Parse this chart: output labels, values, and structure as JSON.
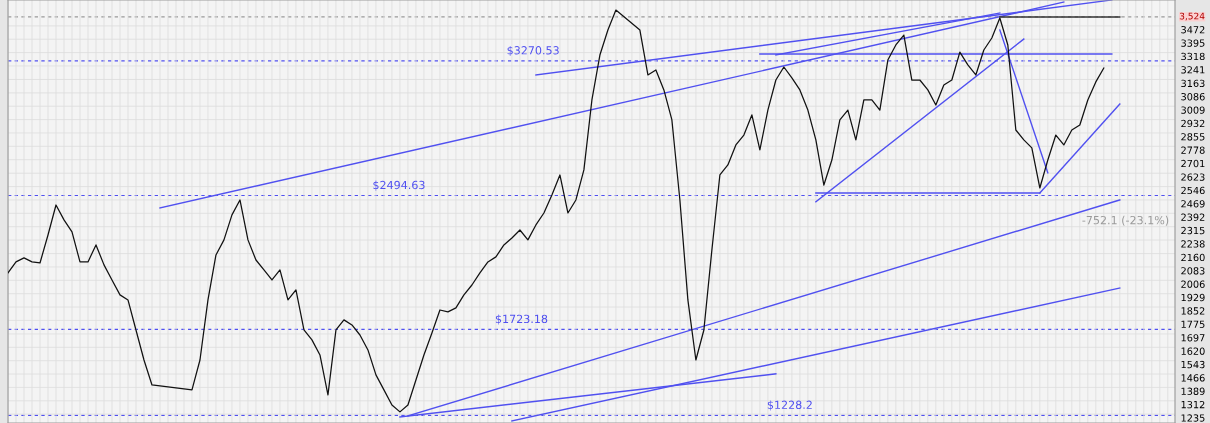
{
  "chart_data": {
    "type": "line",
    "categories": [
      null,
      null,
      null,
      null,
      null,
      null,
      null,
      null,
      null,
      null,
      null,
      null,
      null,
      null,
      null,
      null,
      null,
      null,
      null,
      null,
      null,
      null,
      null,
      null,
      null,
      null,
      null,
      null,
      null,
      null,
      null,
      null,
      null,
      null,
      null,
      null,
      null,
      null,
      null,
      null,
      null,
      null,
      null,
      null,
      null,
      null,
      null,
      null,
      null,
      null,
      null,
      null,
      null,
      null,
      null,
      null,
      null,
      null,
      null,
      null,
      null,
      null,
      null,
      null,
      null,
      null,
      null,
      null,
      null,
      null,
      null,
      null,
      null,
      null,
      null,
      null,
      null,
      null,
      null,
      null,
      null,
      null,
      null,
      null,
      null,
      null,
      null,
      null,
      null,
      null,
      null,
      null,
      null,
      null,
      null,
      null,
      null,
      null,
      null,
      null,
      null,
      null,
      null,
      null,
      null,
      null,
      null,
      null,
      null,
      null,
      null,
      null,
      null,
      null,
      null,
      null,
      null,
      null,
      null,
      null,
      null,
      null,
      null,
      null,
      null,
      null,
      null,
      null,
      null,
      null,
      null,
      null,
      null,
      null,
      null,
      null,
      null,
      null,
      null,
      null,
      null,
      null,
      null,
      null,
      null,
      null
    ],
    "series": [
      {
        "color": "#111111",
        "values": [
          2049,
          2112,
          2135,
          2112,
          2106,
          2267,
          2440,
          2354,
          2285,
          2112,
          2112,
          2210,
          2095,
          2008,
          1922,
          1893,
          1720,
          1547,
          1403,
          null,
          null,
          null,
          null,
          1375,
          1547,
          1893,
          2152,
          2239,
          2383,
          2469,
          2239,
          2123,
          2066,
          2008,
          2066,
          1893,
          1951,
          1720,
          1663,
          1576,
          1346,
          1720,
          1778,
          1749,
          1691,
          1605,
          1461,
          1375,
          1288,
          1248,
          1288,
          1432,
          1576,
          1703,
          1835,
          1824,
          1847,
          1922,
          1979,
          2049,
          2112,
          2141,
          2210,
          2250,
          2296,
          2239,
          2325,
          2394,
          2498,
          2613,
          2394,
          2469,
          2642,
          3045,
          3304,
          3448,
          3563,
          null,
          null,
          3448,
          3189,
          3218,
          3103,
          2930,
          2469,
          1893,
          1547,
          1720,
          2181,
          2613,
          2671,
          2786,
          2843,
          2959,
          2757,
          2987,
          3160,
          3235,
          3172,
          3103,
          2987,
          2815,
          2555,
          2699,
          2930,
          2987,
          2815,
          3045,
          3045,
          2987,
          3275,
          3362,
          3419,
          3160,
          3160,
          3103,
          3016,
          3131,
          3160,
          3321,
          3247,
          3189,
          3333,
          3402,
          3517,
          3362,
          2872,
          2815,
          2769,
          2538,
          2699,
          2843,
          2786,
          2872,
          2901,
          3045,
          3149,
          3229,
          null,
          null,
          null,
          null,
          null,
          null,
          null,
          null
        ]
      },
      {
        "color": "#5050f0",
        "values": [
          null,
          null,
          null,
          null,
          null,
          null,
          null,
          null,
          null,
          null,
          null,
          null,
          null,
          null,
          null,
          null,
          null,
          null,
          null,
          2423,
          null,
          null,
          null,
          null,
          null,
          null,
          null,
          null,
          null,
          null,
          null,
          null,
          null,
          null,
          null,
          null,
          null,
          null,
          null,
          null,
          null,
          null,
          null,
          null,
          null,
          null,
          null,
          null,
          null,
          null,
          null,
          null,
          null,
          null,
          null,
          null,
          null,
          null,
          null,
          null,
          null,
          null,
          null,
          null,
          null,
          null,
          null,
          null,
          null,
          null,
          null,
          null,
          null,
          null,
          null,
          null,
          null,
          null,
          null,
          null,
          null,
          null,
          null,
          null,
          null,
          null,
          null,
          null,
          null,
          null,
          null,
          null,
          null,
          null,
          null,
          null,
          null,
          null,
          null,
          null,
          null,
          null,
          null,
          null,
          null,
          null,
          null,
          null,
          null,
          null,
          null,
          null,
          null,
          null,
          null,
          null,
          null,
          null,
          null,
          null,
          null,
          null,
          null,
          null,
          null,
          null,
          null,
          null,
          null,
          null,
          null,
          null,
          3609,
          null,
          null,
          null,
          null,
          null,
          null,
          null,
          null,
          null,
          null,
          null,
          null,
          null
        ]
      },
      {
        "color": "#5050f0",
        "values": [
          null,
          null,
          null,
          null,
          null,
          null,
          null,
          null,
          null,
          null,
          null,
          null,
          null,
          null,
          null,
          null,
          null,
          null,
          null,
          null,
          null,
          null,
          null,
          null,
          null,
          null,
          null,
          null,
          null,
          null,
          null,
          null,
          null,
          null,
          null,
          null,
          null,
          null,
          null,
          null,
          null,
          null,
          null,
          null,
          null,
          null,
          null,
          null,
          null,
          null,
          null,
          null,
          null,
          null,
          null,
          null,
          null,
          null,
          null,
          null,
          null,
          null,
          null,
          null,
          null,
          null,
          3189,
          null,
          null,
          null,
          null,
          null,
          null,
          null,
          null,
          null,
          null,
          null,
          null,
          null,
          null,
          null,
          null,
          null,
          null,
          null,
          null,
          null,
          null,
          null,
          null,
          null,
          null,
          null,
          null,
          null,
          null,
          null,
          null,
          null,
          null,
          null,
          null,
          null,
          null,
          null,
          null,
          null,
          null,
          null,
          null,
          null,
          null,
          null,
          null,
          null,
          null,
          null,
          null,
          null,
          null,
          null,
          null,
          null,
          null,
          null,
          null,
          null,
          null,
          null,
          null,
          null,
          null,
          null,
          null,
          null,
          null,
          null,
          3621,
          null,
          null,
          null,
          null,
          null,
          null,
          null
        ]
      },
      {
        "color": "#5050f0",
        "values": [
          null,
          null,
          null,
          null,
          null,
          null,
          null,
          null,
          null,
          null,
          null,
          null,
          null,
          null,
          null,
          null,
          null,
          null,
          null,
          null,
          null,
          null,
          null,
          null,
          null,
          null,
          null,
          null,
          null,
          null,
          null,
          null,
          null,
          null,
          null,
          null,
          null,
          null,
          null,
          null,
          null,
          null,
          null,
          null,
          null,
          null,
          null,
          null,
          null,
          null,
          null,
          null,
          null,
          null,
          null,
          null,
          null,
          null,
          null,
          null,
          null,
          null,
          null,
          null,
          null,
          null,
          null,
          null,
          null,
          null,
          null,
          null,
          null,
          null,
          null,
          null,
          null,
          null,
          null,
          null,
          null,
          null,
          null,
          null,
          null,
          null,
          null,
          null,
          null,
          null,
          null,
          null,
          null,
          null,
          null,
          null,
          3304,
          null,
          null,
          null,
          null,
          null,
          null,
          null,
          null,
          null,
          null,
          null,
          null,
          null,
          null,
          null,
          null,
          null,
          null,
          null,
          null,
          null,
          null,
          null,
          null,
          null,
          null,
          null,
          3546,
          null,
          null,
          null,
          null,
          null,
          null,
          null,
          null,
          null,
          null,
          null,
          null,
          null,
          null,
          null,
          null,
          null,
          null,
          null,
          null,
          null
        ]
      },
      {
        "color": "#5050f0",
        "values": [
          null,
          null,
          null,
          null,
          null,
          null,
          null,
          null,
          null,
          null,
          null,
          null,
          null,
          null,
          null,
          null,
          null,
          null,
          null,
          null,
          null,
          null,
          null,
          null,
          null,
          null,
          null,
          null,
          null,
          null,
          null,
          null,
          null,
          null,
          null,
          null,
          null,
          null,
          null,
          null,
          null,
          null,
          null,
          null,
          null,
          null,
          null,
          null,
          null,
          null,
          null,
          null,
          null,
          null,
          null,
          null,
          null,
          null,
          null,
          null,
          null,
          null,
          null,
          null,
          null,
          null,
          null,
          null,
          null,
          null,
          null,
          null,
          null,
          null,
          null,
          null,
          null,
          null,
          null,
          null,
          null,
          null,
          null,
          null,
          null,
          null,
          null,
          null,
          null,
          null,
          null,
          null,
          null,
          null,
          3310,
          null,
          null,
          null,
          null,
          null,
          null,
          null,
          null,
          null,
          null,
          null,
          null,
          null,
          null,
          null,
          null,
          null,
          null,
          null,
          null,
          null,
          null,
          null,
          null,
          null,
          null,
          null,
          null,
          null,
          null,
          null,
          null,
          null,
          null,
          null,
          null,
          null,
          null,
          null,
          null,
          null,
          null,
          null,
          3310,
          null,
          null,
          null,
          null,
          null,
          null,
          null
        ]
      },
      {
        "color": "#5050f0",
        "values": [
          null,
          null,
          null,
          null,
          null,
          null,
          null,
          null,
          null,
          null,
          null,
          null,
          null,
          null,
          null,
          null,
          null,
          null,
          null,
          null,
          null,
          null,
          null,
          null,
          null,
          null,
          null,
          null,
          null,
          null,
          null,
          null,
          null,
          null,
          null,
          null,
          null,
          null,
          null,
          null,
          null,
          null,
          null,
          null,
          null,
          null,
          null,
          null,
          null,
          null,
          null,
          null,
          null,
          null,
          null,
          null,
          null,
          null,
          null,
          null,
          null,
          null,
          null,
          null,
          null,
          null,
          null,
          null,
          null,
          null,
          null,
          null,
          null,
          null,
          null,
          null,
          null,
          null,
          null,
          null,
          null,
          null,
          null,
          null,
          null,
          null,
          null,
          null,
          null,
          null,
          null,
          null,
          null,
          null,
          null,
          null,
          null,
          null,
          null,
          null,
          null,
          2458,
          null,
          null,
          null,
          null,
          null,
          null,
          null,
          null,
          null,
          null,
          null,
          null,
          null,
          null,
          null,
          null,
          null,
          null,
          null,
          null,
          null,
          null,
          null,
          null,
          null,
          3396,
          null,
          null,
          null,
          null,
          null,
          null,
          null,
          null,
          null,
          null,
          null,
          null,
          null,
          null,
          null,
          null,
          null,
          null
        ]
      },
      {
        "color": "#5050f0",
        "values": [
          null,
          null,
          null,
          null,
          null,
          null,
          null,
          null,
          null,
          null,
          null,
          null,
          null,
          null,
          null,
          null,
          null,
          null,
          null,
          null,
          null,
          null,
          null,
          null,
          null,
          null,
          null,
          null,
          null,
          null,
          null,
          null,
          null,
          null,
          null,
          null,
          null,
          null,
          null,
          null,
          null,
          null,
          null,
          null,
          null,
          null,
          null,
          null,
          null,
          null,
          null,
          null,
          null,
          null,
          null,
          null,
          null,
          null,
          null,
          null,
          null,
          null,
          null,
          null,
          null,
          null,
          null,
          null,
          null,
          null,
          null,
          null,
          null,
          null,
          null,
          null,
          null,
          null,
          null,
          null,
          null,
          null,
          null,
          null,
          null,
          null,
          null,
          null,
          null,
          null,
          null,
          null,
          null,
          null,
          null,
          null,
          null,
          null,
          null,
          null,
          null,
          2509,
          null,
          null,
          null,
          null,
          null,
          null,
          null,
          null,
          null,
          null,
          null,
          null,
          null,
          null,
          null,
          null,
          null,
          null,
          null,
          null,
          null,
          null,
          null,
          null,
          null,
          null,
          null,
          2509,
          null,
          null,
          null,
          null,
          null,
          null,
          null,
          null,
          null,
          null,
          null,
          null,
          null,
          null,
          null,
          null
        ]
      },
      {
        "color": "#5050f0",
        "values": [
          null,
          null,
          null,
          null,
          null,
          null,
          null,
          null,
          null,
          null,
          null,
          null,
          null,
          null,
          null,
          null,
          null,
          null,
          null,
          null,
          null,
          null,
          null,
          null,
          null,
          null,
          null,
          null,
          null,
          null,
          null,
          null,
          null,
          null,
          null,
          null,
          null,
          null,
          null,
          null,
          null,
          null,
          null,
          null,
          null,
          null,
          null,
          null,
          null,
          null,
          null,
          null,
          null,
          null,
          null,
          null,
          null,
          null,
          null,
          null,
          null,
          null,
          null,
          null,
          null,
          null,
          null,
          null,
          null,
          null,
          null,
          null,
          null,
          null,
          null,
          null,
          null,
          null,
          null,
          null,
          null,
          null,
          null,
          null,
          null,
          null,
          null,
          null,
          null,
          null,
          null,
          null,
          null,
          null,
          null,
          null,
          null,
          null,
          null,
          null,
          null,
          null,
          null,
          null,
          null,
          null,
          null,
          null,
          null,
          null,
          null,
          null,
          null,
          null,
          null,
          null,
          null,
          null,
          null,
          null,
          null,
          null,
          null,
          null,
          3448,
          null,
          null,
          null,
          null,
          null,
          2625,
          null,
          null,
          null,
          null,
          null,
          null,
          null,
          null,
          null,
          null,
          null,
          null,
          null,
          null,
          null
        ]
      },
      {
        "color": "#5050f0",
        "values": [
          null,
          null,
          null,
          null,
          null,
          null,
          null,
          null,
          null,
          null,
          null,
          null,
          null,
          null,
          null,
          null,
          null,
          null,
          null,
          null,
          null,
          null,
          null,
          null,
          null,
          null,
          null,
          null,
          null,
          null,
          null,
          null,
          null,
          null,
          null,
          null,
          null,
          null,
          null,
          null,
          null,
          null,
          null,
          null,
          null,
          null,
          null,
          null,
          null,
          null,
          null,
          null,
          null,
          null,
          null,
          null,
          null,
          null,
          null,
          null,
          null,
          null,
          null,
          null,
          null,
          null,
          null,
          null,
          null,
          null,
          null,
          null,
          null,
          null,
          null,
          null,
          null,
          null,
          null,
          null,
          null,
          null,
          null,
          null,
          null,
          null,
          null,
          null,
          null,
          null,
          null,
          null,
          null,
          null,
          null,
          null,
          null,
          null,
          null,
          null,
          null,
          null,
          null,
          null,
          null,
          null,
          null,
          null,
          null,
          null,
          null,
          null,
          null,
          null,
          null,
          null,
          null,
          null,
          null,
          null,
          null,
          null,
          null,
          null,
          null,
          null,
          null,
          null,
          null,
          2509,
          null,
          null,
          null,
          null,
          null,
          null,
          null,
          null,
          null,
          3022,
          null,
          null,
          null,
          null,
          null,
          null
        ]
      },
      {
        "color": "#5050f0",
        "values": [
          null,
          null,
          null,
          null,
          null,
          null,
          null,
          null,
          null,
          null,
          null,
          null,
          null,
          null,
          null,
          null,
          null,
          null,
          null,
          null,
          null,
          null,
          null,
          null,
          null,
          null,
          null,
          null,
          null,
          null,
          null,
          null,
          null,
          null,
          null,
          null,
          null,
          null,
          null,
          null,
          null,
          null,
          null,
          null,
          null,
          null,
          null,
          null,
          null,
          null,
          1225,
          null,
          null,
          null,
          null,
          null,
          null,
          null,
          null,
          null,
          null,
          null,
          null,
          null,
          null,
          null,
          null,
          null,
          null,
          null,
          null,
          null,
          null,
          null,
          null,
          null,
          null,
          null,
          null,
          null,
          null,
          null,
          null,
          null,
          null,
          null,
          null,
          null,
          null,
          null,
          null,
          null,
          null,
          null,
          null,
          null,
          null,
          null,
          null,
          null,
          null,
          null,
          null,
          null,
          null,
          null,
          null,
          null,
          null,
          null,
          null,
          null,
          null,
          null,
          null,
          null,
          null,
          null,
          null,
          null,
          null,
          null,
          null,
          null,
          null,
          null,
          null,
          null,
          null,
          null,
          null,
          null,
          null,
          null,
          null,
          null,
          null,
          null,
          null,
          2469,
          null,
          null,
          null,
          null,
          null,
          null
        ]
      },
      {
        "color": "#5050f0",
        "values": [
          null,
          null,
          null,
          null,
          null,
          null,
          null,
          null,
          null,
          null,
          null,
          null,
          null,
          null,
          null,
          null,
          null,
          null,
          null,
          null,
          null,
          null,
          null,
          null,
          null,
          null,
          null,
          null,
          null,
          null,
          null,
          null,
          null,
          null,
          null,
          null,
          null,
          null,
          null,
          null,
          null,
          null,
          null,
          null,
          null,
          null,
          null,
          null,
          null,
          null,
          null,
          null,
          null,
          null,
          null,
          null,
          null,
          null,
          null,
          null,
          null,
          null,
          null,
          1196,
          null,
          null,
          null,
          null,
          null,
          null,
          null,
          null,
          null,
          null,
          null,
          null,
          null,
          null,
          null,
          null,
          null,
          null,
          null,
          null,
          null,
          null,
          null,
          null,
          null,
          null,
          null,
          null,
          null,
          null,
          null,
          null,
          null,
          null,
          null,
          null,
          null,
          null,
          null,
          null,
          null,
          null,
          null,
          null,
          null,
          null,
          null,
          null,
          null,
          null,
          null,
          null,
          null,
          null,
          null,
          null,
          null,
          null,
          null,
          null,
          null,
          null,
          null,
          null,
          null,
          null,
          null,
          null,
          null,
          null,
          null,
          null,
          null,
          null,
          null,
          1962,
          null,
          null,
          null,
          null,
          null,
          null
        ]
      },
      {
        "color": "#5050f0",
        "values": [
          null,
          null,
          null,
          null,
          null,
          null,
          null,
          null,
          null,
          null,
          null,
          null,
          null,
          null,
          null,
          null,
          null,
          null,
          null,
          null,
          null,
          null,
          null,
          null,
          null,
          null,
          null,
          null,
          null,
          null,
          null,
          null,
          null,
          null,
          null,
          null,
          null,
          null,
          null,
          null,
          null,
          null,
          null,
          null,
          null,
          null,
          null,
          null,
          null,
          1219,
          null,
          null,
          null,
          null,
          null,
          null,
          null,
          null,
          null,
          null,
          null,
          null,
          null,
          null,
          null,
          null,
          null,
          null,
          null,
          null,
          null,
          null,
          null,
          null,
          null,
          null,
          null,
          null,
          null,
          null,
          null,
          null,
          null,
          null,
          null,
          null,
          null,
          null,
          null,
          null,
          null,
          null,
          null,
          null,
          null,
          null,
          1467,
          null,
          null,
          null,
          null,
          null,
          null,
          null,
          null,
          null,
          null,
          null,
          null,
          null,
          null,
          null,
          null,
          null,
          null,
          null,
          null,
          null,
          null,
          null,
          null,
          null,
          null,
          null,
          null,
          null,
          null,
          null,
          null,
          null,
          null,
          null,
          null,
          null,
          null,
          null,
          null,
          null,
          null,
          null,
          null,
          null,
          null,
          null,
          null,
          null
        ]
      },
      {
        "color": "#333333",
        "values": [
          null,
          null,
          null,
          null,
          null,
          null,
          null,
          null,
          null,
          null,
          null,
          null,
          null,
          null,
          null,
          null,
          null,
          null,
          null,
          null,
          null,
          null,
          null,
          null,
          null,
          null,
          null,
          null,
          null,
          null,
          null,
          null,
          null,
          null,
          null,
          null,
          null,
          null,
          null,
          null,
          null,
          null,
          null,
          null,
          null,
          null,
          null,
          null,
          null,
          null,
          null,
          null,
          null,
          null,
          null,
          null,
          null,
          null,
          null,
          null,
          null,
          null,
          null,
          null,
          null,
          null,
          null,
          null,
          null,
          null,
          null,
          null,
          null,
          null,
          null,
          null,
          null,
          null,
          null,
          null,
          null,
          null,
          null,
          null,
          null,
          null,
          null,
          null,
          null,
          null,
          null,
          null,
          null,
          null,
          null,
          null,
          null,
          null,
          null,
          null,
          null,
          null,
          null,
          null,
          null,
          null,
          null,
          null,
          null,
          null,
          null,
          null,
          null,
          null,
          null,
          null,
          null,
          null,
          null,
          null,
          null,
          null,
          null,
          null,
          3523,
          null,
          null,
          null,
          null,
          null,
          null,
          null,
          null,
          null,
          null,
          null,
          null,
          null,
          null,
          3523,
          null,
          null,
          null,
          null,
          null,
          null
        ]
      }
    ],
    "ylim": [
      1184,
      3621
    ],
    "yticks": [
      1235,
      1312,
      1389,
      1466,
      1543,
      1620,
      1697,
      1775,
      1852,
      1929,
      2006,
      2083,
      2160,
      2238,
      2315,
      2392,
      2469,
      2546,
      2623,
      2701,
      2778,
      2855,
      2932,
      3009,
      3086,
      3163,
      3241,
      3318,
      3395,
      3472
    ],
    "ref_lines": [
      {
        "axis": "y",
        "value": 3524,
        "label": "3,524",
        "color": "#999999",
        "line_style": "dashed"
      },
      {
        "axis": "y",
        "value": 3270.53,
        "label": "$3270.53",
        "color": "#5050f0",
        "line_style": "dashed"
      },
      {
        "axis": "y",
        "value": 2494.63,
        "label": "$2494.63",
        "color": "#5050f0",
        "line_style": "dashed"
      },
      {
        "axis": "y",
        "value": 1723.18,
        "label": "$1723.18",
        "color": "#5050f0",
        "line_style": "dashed"
      },
      {
        "axis": "y",
        "value": 1228.2,
        "label": "$1228.2",
        "color": "#5050f0",
        "line_style": "dashed"
      }
    ],
    "annotations": [
      "-752.1 (-23.1%)"
    ],
    "grid": true,
    "tick_labels": "y",
    "line_style": "solid",
    "marker": "none"
  }
}
